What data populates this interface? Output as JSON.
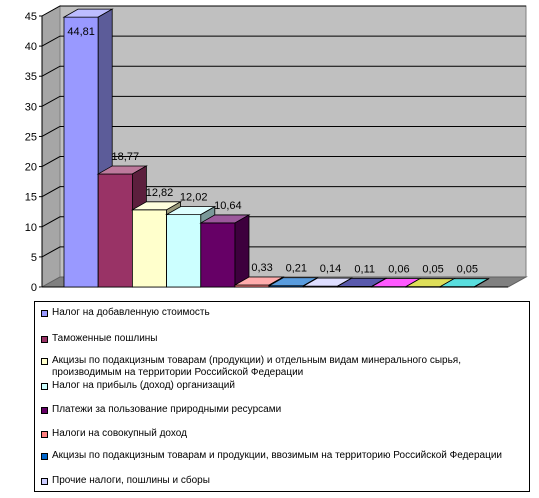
{
  "chart_data": {
    "type": "bar",
    "ylim": [
      0,
      45
    ],
    "yticks": [
      "0",
      "5",
      "10",
      "15",
      "20",
      "25",
      "30",
      "35",
      "40",
      "45"
    ],
    "grid": true,
    "three_d": true,
    "legend_position": "bottom",
    "series": [
      {
        "name": "Налог на добавленную стоимость",
        "value": 44.81,
        "label": "44,81",
        "color": "#9999ff"
      },
      {
        "name": "Таможенные пошлины",
        "value": 18.77,
        "label": "18,77",
        "color": "#993366"
      },
      {
        "name": "Акцизы по подакцизным товарам (продукции) и отдельным видам минерального сырья, производимым на территории Российской Федерации",
        "value": 12.82,
        "label": "12,82",
        "color": "#ffffcc"
      },
      {
        "name": "Налог на прибыль (доход) организаций",
        "value": 12.02,
        "label": "12,02",
        "color": "#ccffff"
      },
      {
        "name": "Платежи за пользование природными ресурсами",
        "value": 10.64,
        "label": "10,64",
        "color": "#660066"
      },
      {
        "name": "Налоги на совокупный доход",
        "value": 0.33,
        "label": "0,33",
        "color": "#ff8080"
      },
      {
        "name": "Акцизы по подакцизным товарам и продукции, ввозимым на территорию Российской Федерации",
        "value": 0.21,
        "label": "0,21",
        "color": "#0066cc"
      },
      {
        "name": "Прочие налоги, пошлины и сборы",
        "value": 0.14,
        "label": "0,14",
        "color": "#ccccff"
      },
      {
        "name": "",
        "value": 0.11,
        "label": "0,11",
        "color": "#000080"
      },
      {
        "name": "",
        "value": 0.06,
        "label": "0,06",
        "color": "#ff00ff"
      },
      {
        "name": "",
        "value": 0.05,
        "label": "0,05",
        "color": "#cccc00"
      },
      {
        "name": "",
        "value": 0.05,
        "label": "0,05",
        "color": "#00cccc"
      }
    ]
  },
  "colors": {
    "wall": "#c0c0c0",
    "floor": "#808080",
    "grid": "#000000"
  }
}
